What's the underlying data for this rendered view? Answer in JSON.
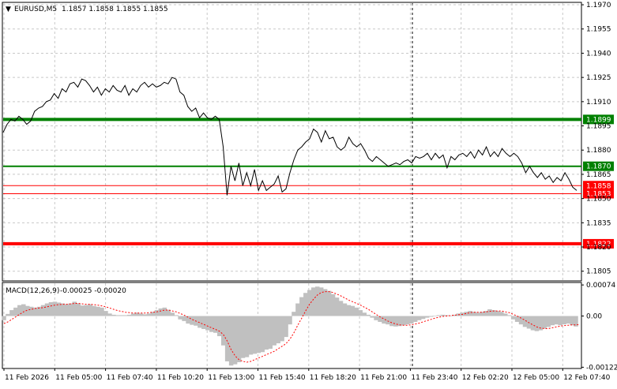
{
  "header": {
    "symbol": "EURUSD,M5",
    "ohlc": "1.1857 1.1858 1.1855 1.1855",
    "collapse_glyph": "▼"
  },
  "macd_header": {
    "label": "MACD(12,26,9)",
    "values": "-0.00025 -0.00020"
  },
  "colors": {
    "price_line": "#000000",
    "support_strong": "#008000",
    "support_weak": "#008000",
    "resistance": "#ff0000",
    "macd_hist": "#c0c0c0",
    "macd_signal": "#ff0000",
    "grid": "#c8c8c8",
    "axis": "#000000"
  },
  "chart_data": [
    {
      "type": "line",
      "name": "price",
      "x_ticks": [
        "11 Feb 2026",
        "11 Feb 05:00",
        "11 Feb 07:40",
        "11 Feb 10:20",
        "11 Feb 13:00",
        "11 Feb 15:40",
        "11 Feb 18:20",
        "11 Feb 21:00",
        "11 Feb 23:40",
        "12 Feb 02:20",
        "12 Feb 05:00",
        "12 Feb 07:40"
      ],
      "y_ticks": [
        "1.1970",
        "1.1955",
        "1.1940",
        "1.1925",
        "1.1910",
        "1.1895",
        "1.1880",
        "1.1865",
        "1.1850",
        "1.1835",
        "1.1820",
        "1.1805"
      ],
      "ylim": [
        1.1799,
        1.1971
      ],
      "price_path": [
        [
          0,
          1.1891
        ],
        [
          1,
          1.1896
        ],
        [
          2,
          1.1899
        ],
        [
          3,
          1.1898
        ],
        [
          4,
          1.1901
        ],
        [
          5,
          1.1899
        ],
        [
          6,
          1.1896
        ],
        [
          7,
          1.1898
        ],
        [
          8,
          1.1904
        ],
        [
          9,
          1.1906
        ],
        [
          10,
          1.1907
        ],
        [
          11,
          1.191
        ],
        [
          12,
          1.1911
        ],
        [
          13,
          1.1915
        ],
        [
          14,
          1.1912
        ],
        [
          15,
          1.1918
        ],
        [
          16,
          1.1916
        ],
        [
          17,
          1.1921
        ],
        [
          18,
          1.1922
        ],
        [
          19,
          1.1919
        ],
        [
          20,
          1.1924
        ],
        [
          21,
          1.1923
        ],
        [
          22,
          1.192
        ],
        [
          23,
          1.1916
        ],
        [
          24,
          1.1919
        ],
        [
          25,
          1.1914
        ],
        [
          26,
          1.1918
        ],
        [
          27,
          1.1916
        ],
        [
          28,
          1.192
        ],
        [
          29,
          1.1917
        ],
        [
          30,
          1.1916
        ],
        [
          31,
          1.192
        ],
        [
          32,
          1.1914
        ],
        [
          33,
          1.1918
        ],
        [
          34,
          1.1916
        ],
        [
          35,
          1.192
        ],
        [
          36,
          1.1922
        ],
        [
          37,
          1.1919
        ],
        [
          38,
          1.1921
        ],
        [
          39,
          1.1919
        ],
        [
          40,
          1.192
        ],
        [
          41,
          1.1922
        ],
        [
          42,
          1.1921
        ],
        [
          43,
          1.1925
        ],
        [
          44,
          1.1924
        ],
        [
          45,
          1.1916
        ],
        [
          46,
          1.1914
        ],
        [
          47,
          1.1907
        ],
        [
          48,
          1.1904
        ],
        [
          49,
          1.1906
        ],
        [
          50,
          1.19
        ],
        [
          51,
          1.1903
        ],
        [
          52,
          1.19
        ],
        [
          53,
          1.1899
        ],
        [
          54,
          1.1901
        ],
        [
          55,
          1.1899
        ],
        [
          56,
          1.1882
        ],
        [
          57,
          1.1852
        ],
        [
          58,
          1.187
        ],
        [
          59,
          1.1861
        ],
        [
          60,
          1.1872
        ],
        [
          61,
          1.1858
        ],
        [
          62,
          1.1866
        ],
        [
          63,
          1.1858
        ],
        [
          64,
          1.1868
        ],
        [
          65,
          1.1855
        ],
        [
          66,
          1.1861
        ],
        [
          67,
          1.1855
        ],
        [
          68,
          1.1857
        ],
        [
          69,
          1.1859
        ],
        [
          70,
          1.1864
        ],
        [
          71,
          1.1854
        ],
        [
          72,
          1.1856
        ],
        [
          73,
          1.1866
        ],
        [
          74,
          1.1874
        ],
        [
          75,
          1.188
        ],
        [
          76,
          1.1882
        ],
        [
          77,
          1.1885
        ],
        [
          78,
          1.1887
        ],
        [
          79,
          1.1893
        ],
        [
          80,
          1.1891
        ],
        [
          81,
          1.1885
        ],
        [
          82,
          1.1892
        ],
        [
          83,
          1.1887
        ],
        [
          84,
          1.1888
        ],
        [
          85,
          1.1882
        ],
        [
          86,
          1.188
        ],
        [
          87,
          1.1882
        ],
        [
          88,
          1.1888
        ],
        [
          89,
          1.1884
        ],
        [
          90,
          1.1882
        ],
        [
          91,
          1.1884
        ],
        [
          92,
          1.188
        ],
        [
          93,
          1.1875
        ],
        [
          94,
          1.1873
        ],
        [
          95,
          1.1876
        ],
        [
          96,
          1.1874
        ],
        [
          97,
          1.1872
        ],
        [
          98,
          1.187
        ],
        [
          99,
          1.1871
        ],
        [
          100,
          1.1872
        ],
        [
          101,
          1.1871
        ],
        [
          102,
          1.1873
        ],
        [
          103,
          1.1874
        ],
        [
          104,
          1.1872
        ],
        [
          105,
          1.1876
        ],
        [
          106,
          1.1875
        ],
        [
          107,
          1.1876
        ],
        [
          108,
          1.1878
        ],
        [
          109,
          1.1874
        ],
        [
          110,
          1.1878
        ],
        [
          111,
          1.1875
        ],
        [
          112,
          1.1877
        ],
        [
          113,
          1.1869
        ],
        [
          114,
          1.1876
        ],
        [
          115,
          1.1874
        ],
        [
          116,
          1.1877
        ],
        [
          117,
          1.1878
        ],
        [
          118,
          1.1876
        ],
        [
          119,
          1.1879
        ],
        [
          120,
          1.1875
        ],
        [
          121,
          1.188
        ],
        [
          122,
          1.1877
        ],
        [
          123,
          1.1882
        ],
        [
          124,
          1.1876
        ],
        [
          125,
          1.1879
        ],
        [
          126,
          1.1876
        ],
        [
          127,
          1.1881
        ],
        [
          128,
          1.1878
        ],
        [
          129,
          1.1876
        ],
        [
          130,
          1.1878
        ],
        [
          131,
          1.1876
        ],
        [
          132,
          1.1872
        ],
        [
          133,
          1.1866
        ],
        [
          134,
          1.187
        ],
        [
          135,
          1.1866
        ],
        [
          136,
          1.1863
        ],
        [
          137,
          1.1866
        ],
        [
          138,
          1.1862
        ],
        [
          139,
          1.1864
        ],
        [
          140,
          1.186
        ],
        [
          141,
          1.1863
        ],
        [
          142,
          1.1861
        ],
        [
          143,
          1.1866
        ],
        [
          144,
          1.1862
        ],
        [
          145,
          1.1857
        ],
        [
          146,
          1.1855
        ]
      ],
      "levels": [
        {
          "price": 1.1899,
          "label": "1.1899",
          "kind": "support_strong"
        },
        {
          "price": 1.187,
          "label": "1.1870",
          "kind": "support_weak"
        },
        {
          "price": 1.1858,
          "label": "1.1858",
          "kind": "resistance_thin"
        },
        {
          "price": 1.1853,
          "label": "1.1853",
          "kind": "resistance_thin"
        },
        {
          "price": 1.1822,
          "label": "1.1822",
          "kind": "resistance_strong"
        }
      ]
    },
    {
      "type": "bar",
      "name": "MACD(12,26,9)",
      "y_ticks": [
        "0.00074",
        "0.00",
        "-0.00122"
      ],
      "ylim": [
        -0.00125,
        0.00078
      ],
      "histogram": [
        -0.0001,
        5e-05,
        0.00014,
        0.0002,
        0.00026,
        0.00028,
        0.00024,
        0.00022,
        0.0002,
        0.00022,
        0.00026,
        0.0003,
        0.00033,
        0.00034,
        0.00032,
        0.0003,
        0.00028,
        0.0003,
        0.00034,
        0.0003,
        0.00025,
        0.00026,
        0.00028,
        0.00024,
        0.00022,
        0.0002,
        0.00012,
        6e-05,
        3e-05,
        2e-05,
        2e-05,
        2e-05,
        3e-05,
        6e-05,
        8e-05,
        6e-05,
        4e-05,
        6e-05,
        0.0001,
        0.00014,
        0.00018,
        0.0002,
        0.00015,
        8e-05,
        2e-05,
        -8e-05,
        -0.00012,
        -0.00018,
        -0.00021,
        -0.00023,
        -0.00028,
        -0.00031,
        -0.00034,
        -0.00038,
        -0.0004,
        -0.00048,
        -0.0007,
        -0.00108,
        -0.00118,
        -0.00115,
        -0.0011,
        -0.001,
        -0.00098,
        -0.00092,
        -0.0009,
        -0.00088,
        -0.00086,
        -0.0008,
        -0.00078,
        -0.0007,
        -0.00065,
        -0.0006,
        -0.0005,
        -0.0002,
        0.0001,
        0.0003,
        0.00045,
        0.00055,
        0.00062,
        0.00068,
        0.0007,
        0.00068,
        0.00064,
        0.0006,
        0.00052,
        0.00044,
        0.00036,
        0.0003,
        0.00026,
        0.00024,
        0.0002,
        0.00014,
        8e-05,
        3e-05,
        -4e-05,
        -0.0001,
        -0.00014,
        -0.00018,
        -0.0002,
        -0.00024,
        -0.00025,
        -0.00024,
        -0.00022,
        -0.0002,
        -0.00018,
        -0.00014,
        -0.0001,
        -7e-05,
        -4e-05,
        -2e-05,
        1e-05,
        2e-05,
        3e-05,
        2e-05,
        1e-05,
        3e-05,
        6e-05,
        8e-05,
        0.0001,
        0.00012,
        0.0001,
        8e-05,
        0.0001,
        0.00012,
        0.00016,
        0.00014,
        0.00012,
        0.0001,
        6e-05,
        2e-05,
        -8e-05,
        -0.00014,
        -0.0002,
        -0.00026,
        -0.0003,
        -0.00034,
        -0.00036,
        -0.00034,
        -0.0003,
        -0.00026,
        -0.00022,
        -0.0002,
        -0.00022,
        -0.0002,
        -0.00018,
        -0.00022,
        -0.00025
      ],
      "signal": [
        -0.00018,
        -0.00014,
        -8e-05,
        -2e-05,
        4e-05,
        0.0001,
        0.00014,
        0.00016,
        0.00018,
        0.00019,
        0.0002,
        0.00022,
        0.00024,
        0.00026,
        0.00027,
        0.00028,
        0.00028,
        0.00029,
        0.0003,
        0.0003,
        0.00029,
        0.00028,
        0.00028,
        0.00027,
        0.00026,
        0.00024,
        0.00022,
        0.00019,
        0.00016,
        0.00013,
        0.00011,
        9e-05,
        8e-05,
        7e-05,
        7e-05,
        7e-05,
        7e-05,
        8e-05,
        9e-05,
        0.0001,
        0.00012,
        0.00014,
        0.00014,
        0.00012,
        0.0001,
        6e-05,
        2e-05,
        -3e-05,
        -8e-05,
        -0.00012,
        -0.00016,
        -0.0002,
        -0.00024,
        -0.00028,
        -0.00032,
        -0.00036,
        -0.00044,
        -0.0006,
        -0.0008,
        -0.00095,
        -0.00104,
        -0.00108,
        -0.0011,
        -0.00108,
        -0.00104,
        -0.001,
        -0.00096,
        -0.00092,
        -0.00088,
        -0.00084,
        -0.00078,
        -0.00072,
        -0.00066,
        -0.00055,
        -0.0004,
        -0.00022,
        -5e-05,
        0.00012,
        0.00028,
        0.0004,
        0.0005,
        0.00056,
        0.00058,
        0.00058,
        0.00056,
        0.00052,
        0.00048,
        0.00043,
        0.00038,
        0.00034,
        0.0003,
        0.00026,
        0.00021,
        0.00016,
        0.0001,
        4e-05,
        -2e-05,
        -7e-05,
        -0.00012,
        -0.00016,
        -0.00019,
        -0.00021,
        -0.00022,
        -0.00022,
        -0.00021,
        -0.00019,
        -0.00017,
        -0.00014,
        -0.00011,
        -8e-05,
        -5e-05,
        -3e-05,
        -1e-05,
        0.0,
        1e-05,
        2e-05,
        3e-05,
        4e-05,
        6e-05,
        8e-05,
        9e-05,
        9e-05,
        9e-05,
        0.0001,
        0.00011,
        0.00012,
        0.00012,
        0.00012,
        0.0001,
        8e-05,
        4e-05,
        0.0,
        -5e-05,
        -0.0001,
        -0.00016,
        -0.00021,
        -0.00026,
        -0.00029,
        -0.0003,
        -0.0003,
        -0.00028,
        -0.00026,
        -0.00024,
        -0.00023,
        -0.00022,
        -0.00021,
        -0.00021,
        -0.0002
      ]
    }
  ]
}
